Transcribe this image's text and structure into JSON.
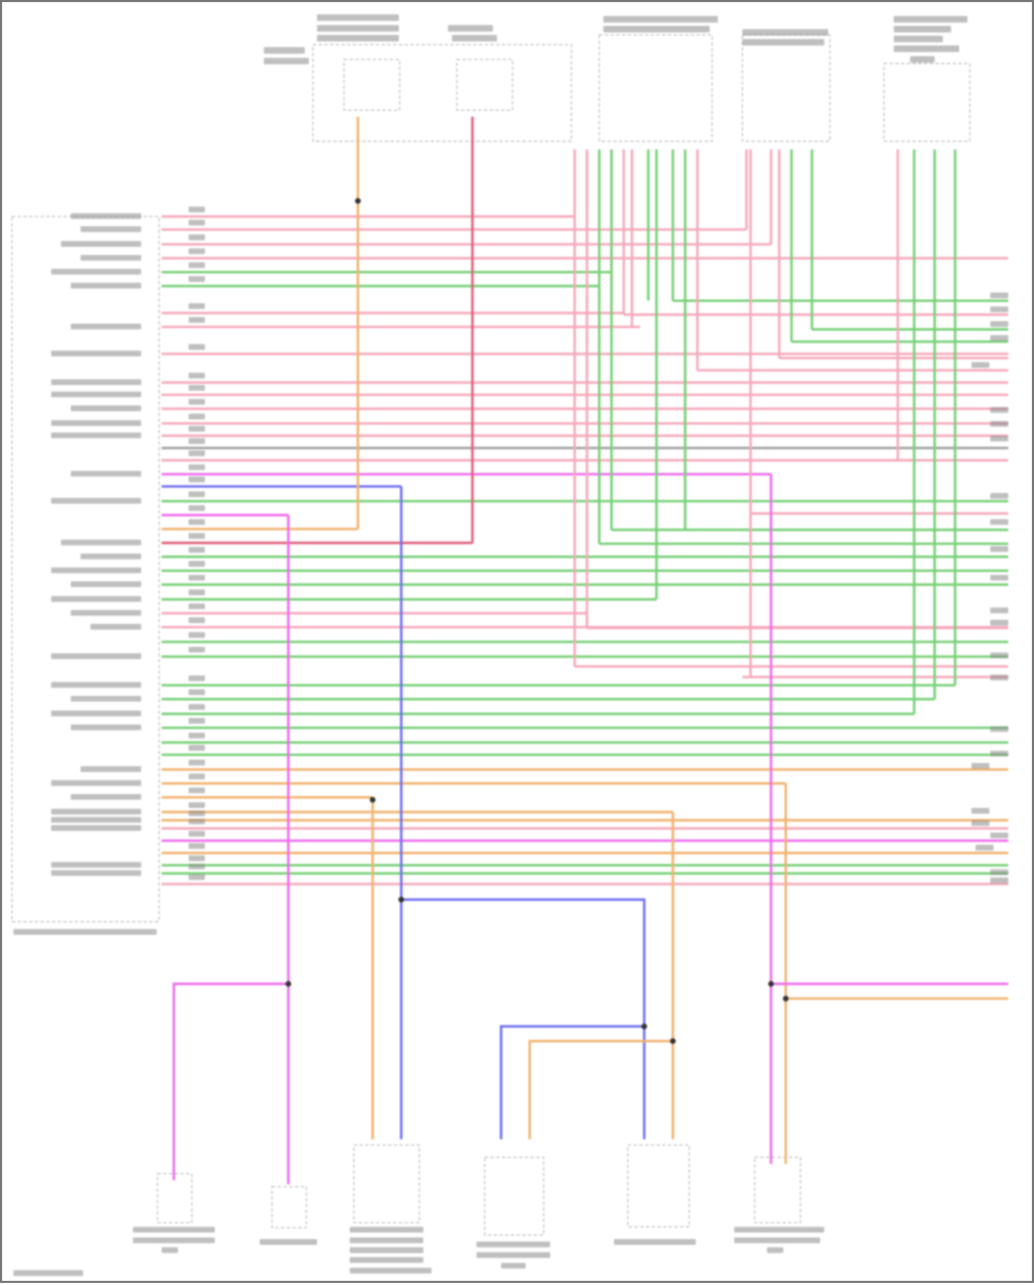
{
  "diagram": {
    "type": "wiring-schematic",
    "text_legible": false,
    "wire_colors": {
      "pink": "#f5a9bb",
      "green": "#78d078",
      "gray": "#a0a0a0",
      "magenta": "#ee6cee",
      "blue": "#6f6ff0",
      "orange": "#f2b26e",
      "red": "#e0607a"
    },
    "label_color": "#8a8a8a",
    "box_outline_color": "#b5b5b5",
    "module_count_top": 5,
    "component_count_bottom": 6
  }
}
